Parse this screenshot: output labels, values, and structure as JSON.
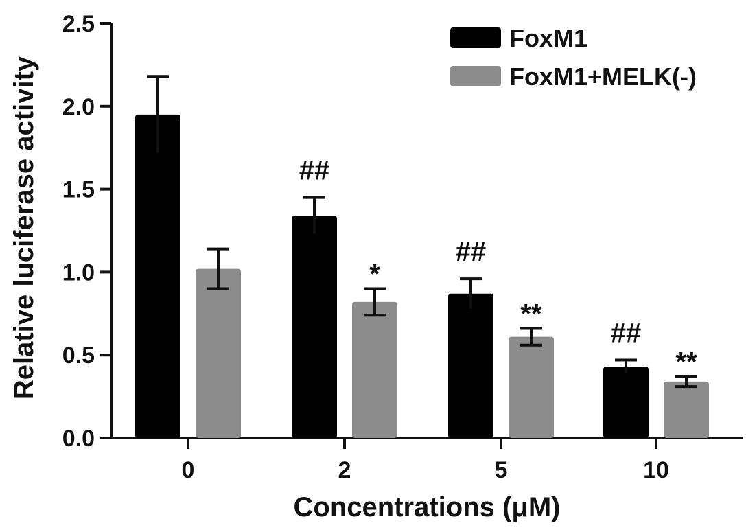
{
  "chart_data": {
    "type": "bar",
    "categories": [
      "0",
      "2",
      "5",
      "10"
    ],
    "series": [
      {
        "name": "FoxM1",
        "color": "#000000",
        "values": [
          1.95,
          1.34,
          0.87,
          0.43
        ],
        "errors": [
          0.23,
          0.11,
          0.09,
          0.04
        ],
        "annotations": [
          "",
          "##",
          "##",
          "##"
        ]
      },
      {
        "name": "FoxM1+MELK(-)",
        "color": "#8c8c8c",
        "values": [
          1.02,
          0.82,
          0.61,
          0.34
        ],
        "errors": [
          0.12,
          0.08,
          0.05,
          0.03
        ],
        "annotations": [
          "",
          "*",
          "**",
          "**"
        ]
      }
    ],
    "xlabel": "Concentrations (μM)",
    "ylabel": "Relative luciferase activity",
    "ylim": [
      0,
      2.5
    ],
    "yticks": [
      "0.0",
      "0.5",
      "1.0",
      "1.5",
      "2.0",
      "2.5"
    ],
    "grid": false,
    "legend_position": "top-right"
  }
}
